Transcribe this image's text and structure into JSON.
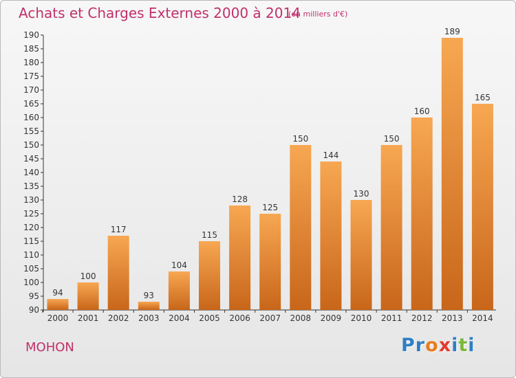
{
  "title": "Achats et Charges Externes 2000 à 2014",
  "subtitle": "(en milliers d'€)",
  "commune": "MOHON",
  "logo": {
    "text": "Proxiti",
    "letters": [
      "P",
      "r",
      "o",
      "x",
      "i",
      "t",
      "i"
    ],
    "colors": [
      "#2e7fc4",
      "#2e7fc4",
      "#e87c1e",
      "#e33a2c",
      "#2e7fc4",
      "#7ab83a",
      "#2e7fc4"
    ]
  },
  "colors": {
    "title": "#c0306a",
    "bar_light": "#f7a752",
    "bar_dark": "#c8661a",
    "axis": "#333333"
  },
  "chart_data": {
    "type": "bar",
    "title": "Achats et Charges Externes 2000 à 2014",
    "subtitle": "(en milliers d'€)",
    "xlabel": "",
    "ylabel": "",
    "categories": [
      "2000",
      "2001",
      "2002",
      "2003",
      "2004",
      "2005",
      "2006",
      "2007",
      "2008",
      "2009",
      "2010",
      "2011",
      "2012",
      "2013",
      "2014"
    ],
    "values": [
      94,
      100,
      117,
      93,
      104,
      115,
      128,
      125,
      150,
      144,
      130,
      150,
      160,
      189,
      165
    ],
    "ylim": [
      90,
      190
    ],
    "yticks": [
      90,
      95,
      100,
      105,
      110,
      115,
      120,
      125,
      130,
      135,
      140,
      145,
      150,
      155,
      160,
      165,
      170,
      175,
      180,
      185,
      190
    ],
    "grid": false,
    "legend": "none"
  }
}
